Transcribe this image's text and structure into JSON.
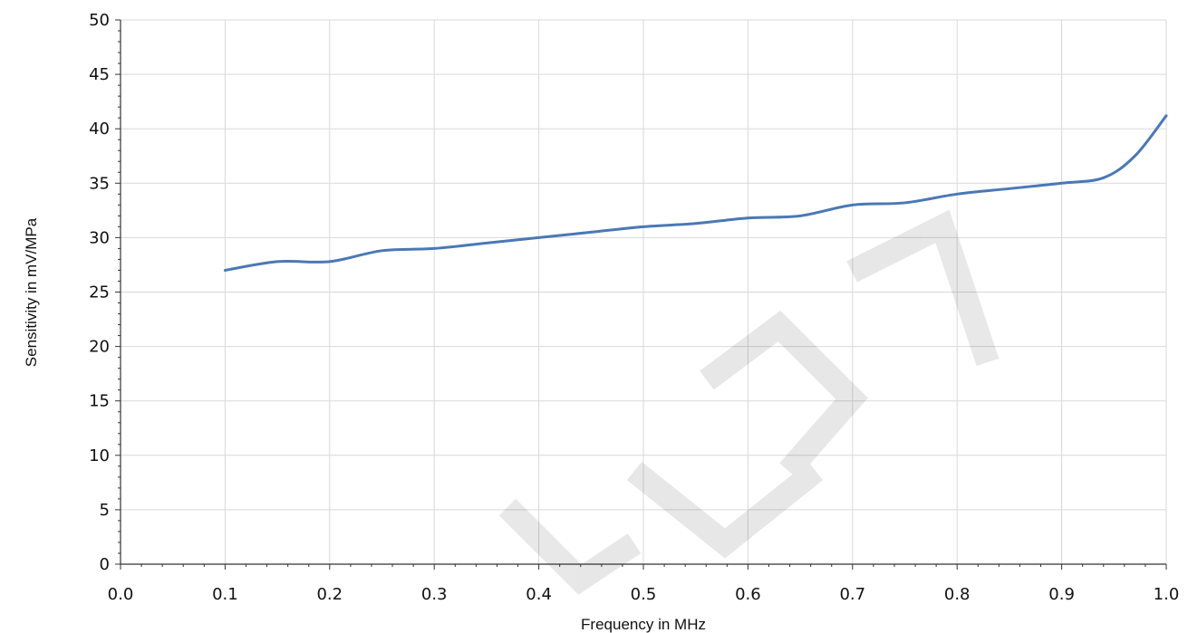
{
  "chart_data": {
    "type": "line",
    "title": "",
    "xlabel": "Frequency in MHz",
    "ylabel": "Sensitivity in mV/MPa",
    "xlim": [
      0.0,
      1.0
    ],
    "ylim": [
      0,
      50
    ],
    "x_ticks": [
      "0.0",
      "0.1",
      "0.2",
      "0.3",
      "0.4",
      "0.5",
      "0.6",
      "0.7",
      "0.8",
      "0.9",
      "1.0"
    ],
    "y_ticks": [
      "0",
      "5",
      "10",
      "15",
      "20",
      "25",
      "30",
      "35",
      "40",
      "45",
      "50"
    ],
    "grid": true,
    "legend": "none",
    "series": [
      {
        "color": "#4a78b5",
        "x": [
          0.1,
          0.15,
          0.2,
          0.25,
          0.3,
          0.35,
          0.4,
          0.45,
          0.5,
          0.55,
          0.6,
          0.65,
          0.7,
          0.75,
          0.8,
          0.85,
          0.9,
          0.94,
          0.97,
          1.0
        ],
        "y": [
          27.0,
          27.8,
          27.8,
          28.8,
          29.0,
          29.5,
          30.0,
          30.5,
          31.0,
          31.3,
          31.8,
          32.0,
          33.0,
          33.2,
          34.0,
          34.5,
          35.0,
          35.5,
          37.5,
          41.2
        ]
      }
    ]
  }
}
